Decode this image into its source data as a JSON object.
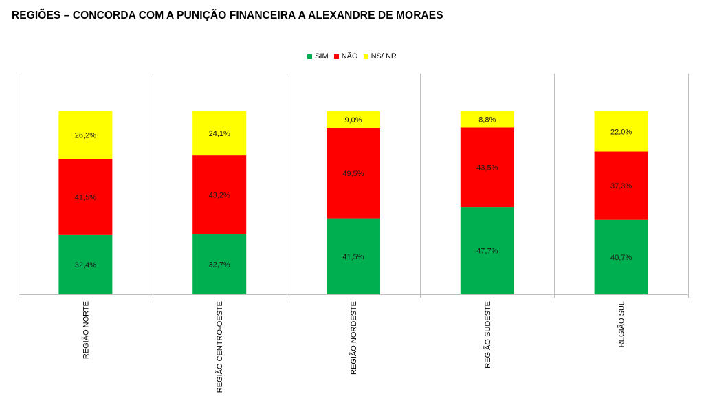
{
  "chart_data": {
    "type": "bar",
    "stacked": true,
    "title": "REGIÕES – CONCORDA COM A PUNIÇÃO FINANCEIRA A ALEXANDRE DE MORAES",
    "categories": [
      "REGIÃO NORTE",
      "REGIÃO CENTRO-OESTE",
      "REGIÃO NORDESTE",
      "REGIÃO SUDESTE",
      "REGIÃO SUL"
    ],
    "series": [
      {
        "name": "SIM",
        "color": "#00B050",
        "values": [
          32.4,
          32.7,
          41.5,
          47.7,
          40.7
        ],
        "labels": [
          "32,4%",
          "32,7%",
          "41,5%",
          "47,7%",
          "40,7%"
        ]
      },
      {
        "name": "NÃO",
        "color": "#FF0000",
        "values": [
          41.5,
          43.2,
          49.5,
          43.5,
          37.3
        ],
        "labels": [
          "41,5%",
          "43,2%",
          "49,5%",
          "43,5%",
          "37,3%"
        ]
      },
      {
        "name": "NS/ NR",
        "color": "#FFFF00",
        "values": [
          26.2,
          24.1,
          9.0,
          8.8,
          22.0
        ],
        "labels": [
          "26,2%",
          "24,1%",
          "9,0%",
          "8,8%",
          "22,0%"
        ]
      }
    ],
    "ylim": [
      0,
      100
    ],
    "grid": false,
    "legend_position": "top-center",
    "axis_color": "#BFBFBF"
  }
}
